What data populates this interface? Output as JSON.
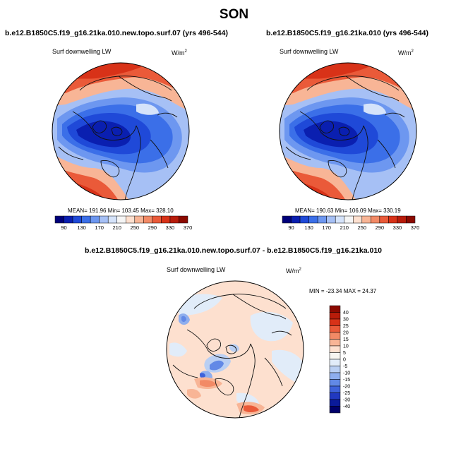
{
  "page_title": "SON",
  "panels": [
    {
      "title": "b.e12.B1850C5.f19_g16.21ka.010.new.topo.surf.07 (yrs 496-544)",
      "variable": "Surf downwelling LW",
      "units": "W/m",
      "units_sup": "2",
      "stats": "MEAN= 191.96  Min= 103.45  Max= 328.10",
      "colorbar_labels": [
        "90",
        "130",
        "170",
        "210",
        "250",
        "290",
        "330",
        "370"
      ]
    },
    {
      "title": "b.e12.B1850C5.f19_g16.21ka.010 (yrs 496-544)",
      "variable": "Surf downwelling LW",
      "units": "W/m",
      "units_sup": "2",
      "stats": "MEAN= 190.63  Min= 106.09  Max= 330.19",
      "colorbar_labels": [
        "90",
        "130",
        "170",
        "210",
        "250",
        "290",
        "330",
        "370"
      ]
    },
    {
      "title": "b.e12.B1850C5.f19_g16.21ka.010.new.topo.surf.07 - b.e12.B1850C5.f19_g16.21ka.010",
      "variable": "Surf downwelling LW",
      "units": "W/m",
      "units_sup": "2",
      "stats": "MIN = -23.34 MAX =  24.37",
      "colorbar_labels": [
        "40",
        "30",
        "25",
        "20",
        "15",
        "10",
        "5",
        "0",
        "-5",
        "-10",
        "-15",
        "-20",
        "-25",
        "-30",
        "-40"
      ]
    }
  ],
  "colors": {
    "abs_scale": [
      "#00007a",
      "#0a1fb0",
      "#1f49d8",
      "#3b6fe8",
      "#6d97f0",
      "#a6c0f5",
      "#d5e3fa",
      "#f5f5f5",
      "#fde0cf",
      "#f8b596",
      "#f28a66",
      "#ea5a39",
      "#d83218",
      "#b81c0a",
      "#8b0a00"
    ],
    "diff_scale": [
      "#8b0a00",
      "#b81c0a",
      "#d83218",
      "#ea5a39",
      "#f28a66",
      "#f8b596",
      "#fde0cf",
      "#f8f6f1",
      "#e1ecf9",
      "#b9cff3",
      "#8eaeee",
      "#6289e6",
      "#3e62da",
      "#2139c0",
      "#0a1a9a",
      "#00006a"
    ]
  }
}
